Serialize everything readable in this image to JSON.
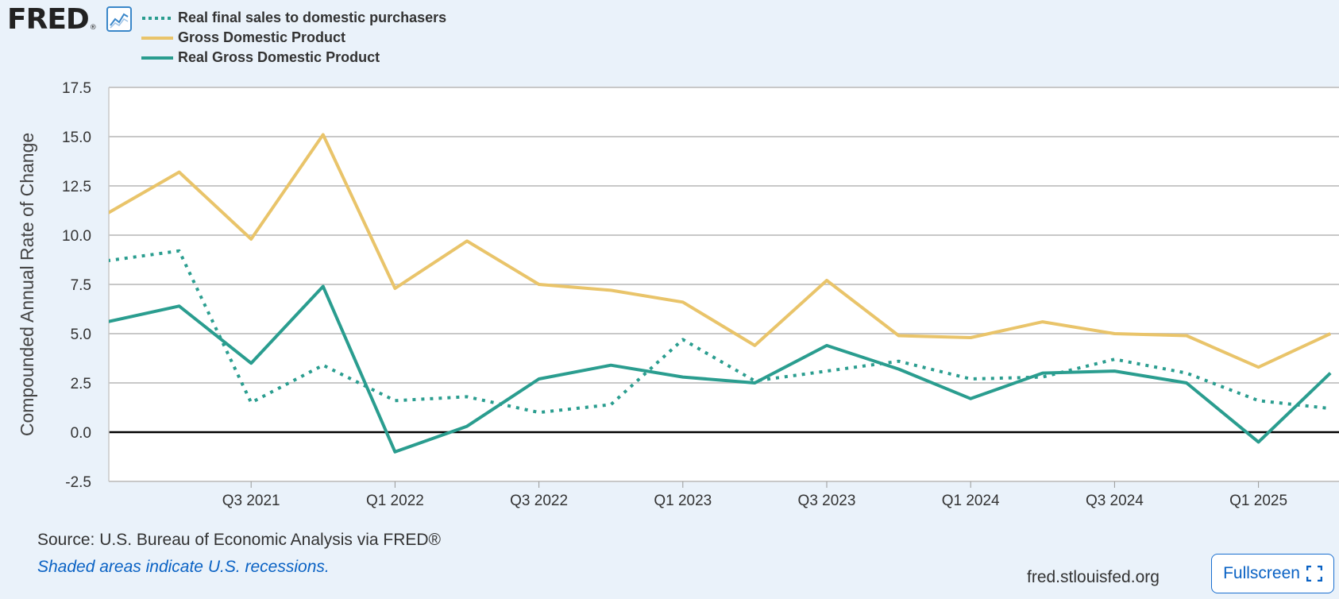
{
  "brand": {
    "logo_text": "FRED",
    "registered_mark": "®",
    "icon": "line-chart-icon"
  },
  "colors": {
    "gdp": "#e9c46a",
    "rgdp": "#2a9d8f",
    "rfs": "#2a9d8f",
    "plot_bg": "#ffffff",
    "page_bg": "#eaf2fa"
  },
  "footer": {
    "source": "Source: U.S. Bureau of Economic Analysis via FRED®",
    "note": "Shaded areas indicate U.S. recessions.",
    "url": "fred.stlouisfed.org",
    "fullscreen_label": "Fullscreen",
    "fullscreen_icon": "expand-icon"
  },
  "chart_data": {
    "type": "line",
    "ylabel": "Compounded Annual Rate of Change",
    "ylim": [
      -2.5,
      17.5
    ],
    "y_ticks": [
      "17.5",
      "15.0",
      "12.5",
      "10.0",
      "7.5",
      "5.0",
      "2.5",
      "0.0",
      "-2.5"
    ],
    "x": [
      "Q1 2021",
      "Q2 2021",
      "Q3 2021",
      "Q4 2021",
      "Q1 2022",
      "Q2 2022",
      "Q3 2022",
      "Q4 2022",
      "Q1 2023",
      "Q2 2023",
      "Q3 2023",
      "Q4 2023",
      "Q1 2024",
      "Q2 2024",
      "Q3 2024",
      "Q4 2024",
      "Q1 2025",
      "Q2 2025"
    ],
    "x_tick_labels": [
      "Q3 2021",
      "Q1 2022",
      "Q3 2022",
      "Q1 2023",
      "Q3 2023",
      "Q1 2024",
      "Q3 2024",
      "Q1 2025"
    ],
    "grid": true,
    "legend_position": "top-left",
    "series": [
      {
        "name": "Real final sales to domestic purchasers",
        "style": "dotted",
        "values": [
          8.7,
          9.2,
          1.5,
          3.4,
          1.6,
          1.8,
          1.0,
          1.4,
          4.7,
          2.6,
          3.1,
          3.6,
          2.7,
          2.8,
          3.7,
          3.0,
          1.6,
          1.2
        ]
      },
      {
        "name": "Gross Domestic Product",
        "style": "solid",
        "values": [
          11.1,
          13.2,
          9.8,
          15.1,
          7.3,
          9.7,
          7.5,
          7.2,
          6.6,
          4.4,
          7.7,
          4.9,
          4.8,
          5.6,
          5.0,
          4.9,
          3.3,
          5.0
        ]
      },
      {
        "name": "Real Gross Domestic Product",
        "style": "solid",
        "values": [
          5.6,
          6.4,
          3.5,
          7.4,
          -1.0,
          0.3,
          2.7,
          3.4,
          2.8,
          2.5,
          4.4,
          3.2,
          1.7,
          3.0,
          3.1,
          2.5,
          -0.5,
          3.0
        ]
      }
    ]
  }
}
